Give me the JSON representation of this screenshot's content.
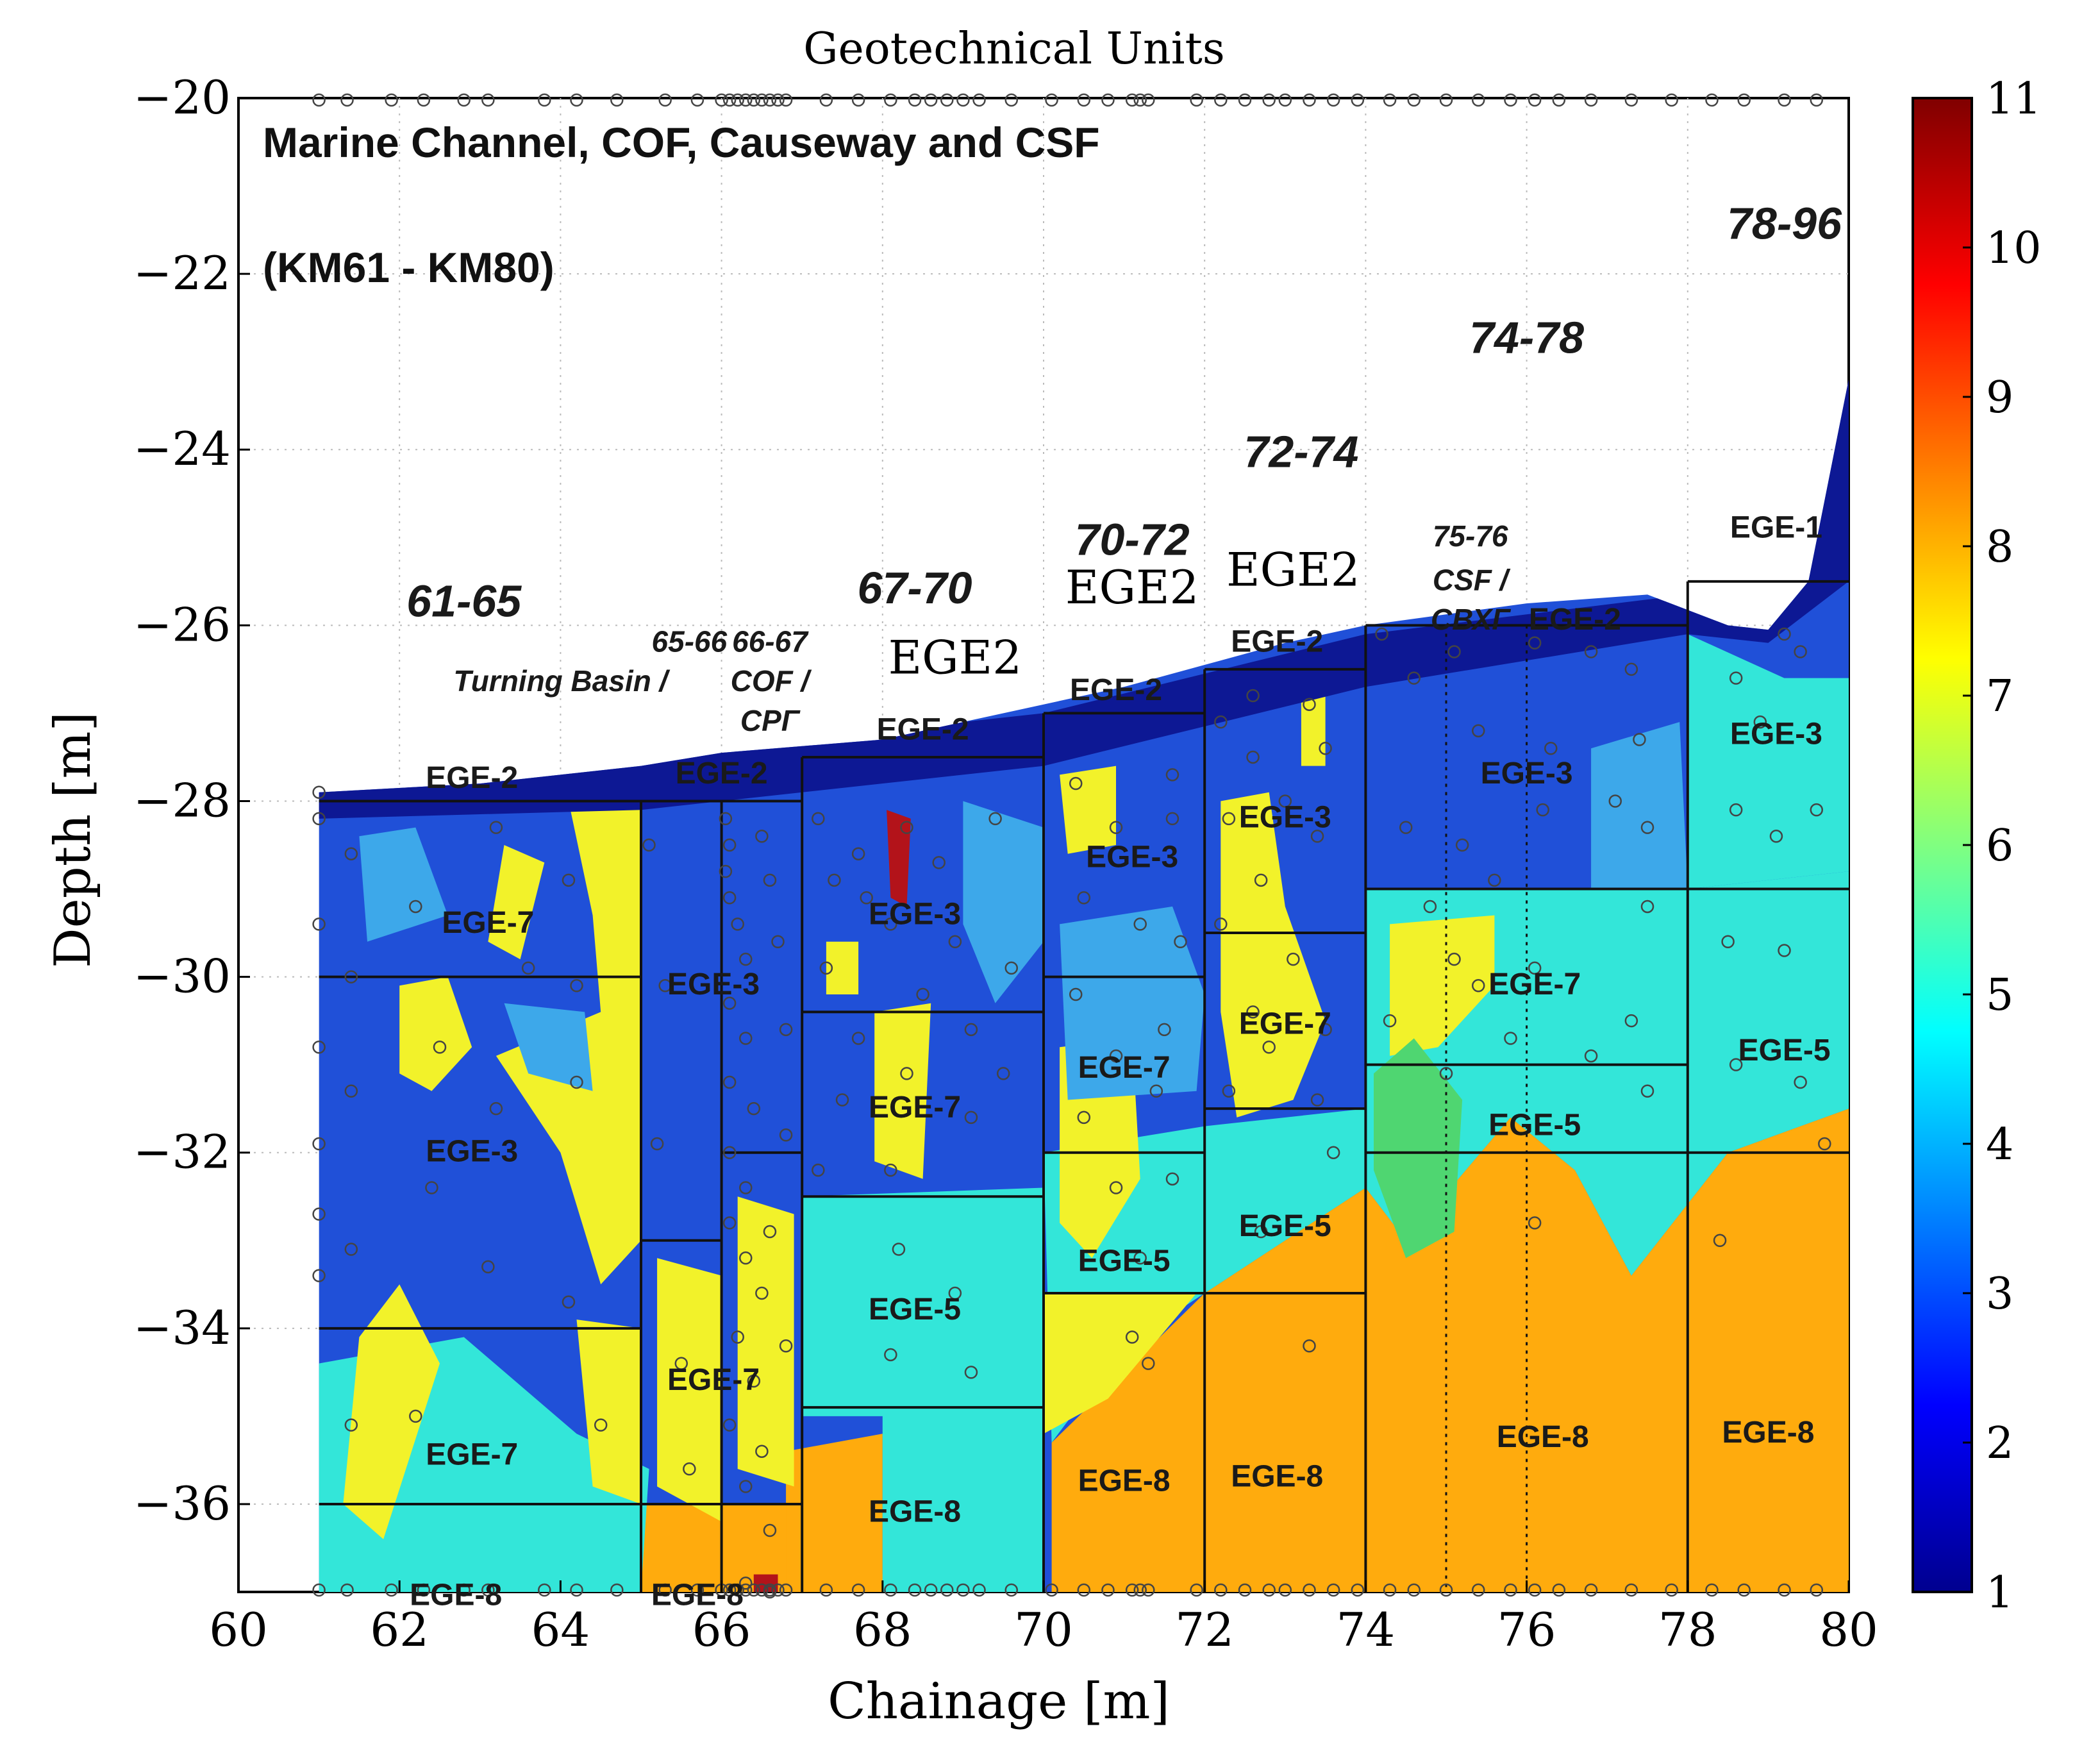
{
  "chart_data": {
    "type": "heatmap",
    "title": "Geotechnical Units",
    "subtitle": "Marine Channel, COF, Causeway and CSF",
    "subtitle2": "(KM61 - KM80)",
    "xlabel": "Chainage [m]",
    "ylabel": "Depth [m]",
    "xlim": [
      60,
      80
    ],
    "ylim": [
      -37,
      -20
    ],
    "x_ticks": [
      60,
      62,
      64,
      66,
      68,
      70,
      72,
      74,
      76,
      78,
      80
    ],
    "x_tick_labels": [
      "60",
      "62",
      "64",
      "66",
      "68",
      "70",
      "72",
      "74",
      "76",
      "78",
      "80"
    ],
    "y_ticks": [
      -20,
      -22,
      -24,
      -26,
      -28,
      -30,
      -32,
      -34,
      -36
    ],
    "y_tick_labels": [
      "−20",
      "−22",
      "−24",
      "−26",
      "−28",
      "−30",
      "−32",
      "−34",
      "−36"
    ],
    "grid": true,
    "colorbar": {
      "min": 1,
      "max": 11,
      "ticks": [
        1,
        2,
        3,
        4,
        5,
        6,
        7,
        8,
        9,
        10,
        11
      ],
      "tick_labels": [
        "1",
        "2",
        "3",
        "4",
        "5",
        "6",
        "7",
        "8",
        "9",
        "10",
        "11"
      ],
      "colormap": [
        "#00008f",
        "#0000ff",
        "#0080ff",
        "#00ffff",
        "#80ff80",
        "#ffff00",
        "#ff8000",
        "#ff0000",
        "#800000"
      ]
    },
    "colors": {
      "eg2": "#1a32c9",
      "eg3": "#2050d8",
      "eg5": "#33e6d9",
      "eg7": "#f2f22a",
      "eg8": "#ffab0d",
      "deep": "#0d1894",
      "light_blue": "#3da8ea",
      "red": "#b3131a",
      "green": "#4fd671"
    },
    "seabed_profile": [
      [
        61,
        -27.9
      ],
      [
        63,
        -27.8
      ],
      [
        65,
        -27.6
      ],
      [
        66,
        -27.45
      ],
      [
        68,
        -27.3
      ],
      [
        69,
        -27.1
      ],
      [
        70,
        -26.9
      ],
      [
        71,
        -26.7
      ],
      [
        72,
        -26.45
      ],
      [
        73,
        -26.2
      ],
      [
        74,
        -26.0
      ],
      [
        76,
        -25.75
      ],
      [
        77.5,
        -25.65
      ],
      [
        78.5,
        -26.0
      ],
      [
        79,
        -26.05
      ],
      [
        79.5,
        -25.5
      ],
      [
        80,
        -23.2
      ]
    ],
    "unit_columns": [
      {
        "x0": 61,
        "x1": 65,
        "boundaries": [
          -28,
          -30,
          -34,
          -36
        ]
      },
      {
        "x0": 65,
        "x1": 66,
        "boundaries": [
          -28,
          -33,
          -36
        ]
      },
      {
        "x0": 66,
        "x1": 67,
        "boundaries": [
          -28,
          -32,
          -36
        ]
      },
      {
        "x0": 67,
        "x1": 70,
        "boundaries": [
          -27.5,
          -30.4,
          -32.5,
          -34.9
        ]
      },
      {
        "x0": 70,
        "x1": 72,
        "boundaries": [
          -27,
          -30,
          -32,
          -33.6
        ]
      },
      {
        "x0": 72,
        "x1": 74,
        "boundaries": [
          -26.5,
          -29.5,
          -31.5,
          -33.6
        ]
      },
      {
        "x0": 74,
        "x1": 78,
        "boundaries": [
          -26,
          -29,
          -31,
          -32
        ]
      },
      {
        "x0": 78,
        "x1": 80,
        "boundaries": [
          -25.5,
          -29,
          -32
        ]
      }
    ],
    "zone_dividers": [
      61,
      65,
      66,
      67,
      70,
      72,
      74,
      78
    ],
    "dotted_dividers": [
      75,
      76
    ],
    "segment_labels": [
      {
        "text": "61-65",
        "x": 62.8,
        "y": -25.9
      },
      {
        "text": "65-66",
        "x": 65.6,
        "y": -26.3
      },
      {
        "text": "Turning Basin /",
        "x": 64.0,
        "y": -26.75
      },
      {
        "text": "66-67",
        "x": 66.6,
        "y": -26.3
      },
      {
        "text": "COF /",
        "x": 66.6,
        "y": -26.75
      },
      {
        "text": "СРГ",
        "x": 66.6,
        "y": -27.2
      },
      {
        "text": "67-70",
        "x": 68.4,
        "y": -25.75
      },
      {
        "text": "70-72",
        "x": 71.1,
        "y": -25.2
      },
      {
        "text": "72-74",
        "x": 73.2,
        "y": -24.2
      },
      {
        "text": "74-78",
        "x": 76.0,
        "y": -22.9
      },
      {
        "text": "75-76",
        "x": 75.3,
        "y": -25.1
      },
      {
        "text": "CSF /",
        "x": 75.3,
        "y": -25.6
      },
      {
        "text": "СВХГ",
        "x": 75.3,
        "y": -26.05
      },
      {
        "text": "78-96",
        "x": 79.2,
        "y": -21.6
      }
    ],
    "unit_labels": [
      {
        "text": "EGE-2",
        "x": 62.9,
        "y": -27.85
      },
      {
        "text": "EGE-7",
        "x": 63.1,
        "y": -29.5
      },
      {
        "text": "EGE-3",
        "x": 62.9,
        "y": -32.1
      },
      {
        "text": "EGE-7",
        "x": 62.9,
        "y": -35.55
      },
      {
        "text": "EGE-8",
        "x": 62.7,
        "y": -37.15
      },
      {
        "text": "EGE-2",
        "x": 66.0,
        "y": -27.8
      },
      {
        "text": "EGE-3",
        "x": 65.9,
        "y": -30.2
      },
      {
        "text": "EGE-7",
        "x": 65.9,
        "y": -34.7
      },
      {
        "text": "EGE-8",
        "x": 65.7,
        "y": -37.15
      },
      {
        "text": "EGE-2",
        "x": 68.5,
        "y": -27.3
      },
      {
        "text": "EGE-3",
        "x": 68.4,
        "y": -29.4
      },
      {
        "text": "EGE-7",
        "x": 68.4,
        "y": -31.6
      },
      {
        "text": "EGE-5",
        "x": 68.4,
        "y": -33.9
      },
      {
        "text": "EGE-8",
        "x": 68.4,
        "y": -36.2
      },
      {
        "text": "EGE-2",
        "x": 70.9,
        "y": -26.85
      },
      {
        "text": "EGE-3",
        "x": 71.1,
        "y": -28.75
      },
      {
        "text": "EGE-7",
        "x": 71.0,
        "y": -31.15
      },
      {
        "text": "EGE-5",
        "x": 71.0,
        "y": -33.35
      },
      {
        "text": "EGE-8",
        "x": 71.0,
        "y": -35.85
      },
      {
        "text": "EGE-2",
        "x": 72.9,
        "y": -26.3
      },
      {
        "text": "EGE-3",
        "x": 73.0,
        "y": -28.3
      },
      {
        "text": "EGE-7",
        "x": 73.0,
        "y": -30.65
      },
      {
        "text": "EGE-5",
        "x": 73.0,
        "y": -32.95
      },
      {
        "text": "EGE-8",
        "x": 72.9,
        "y": -35.8
      },
      {
        "text": "EGE-2",
        "x": 76.6,
        "y": -26.05
      },
      {
        "text": "EGE-3",
        "x": 76.0,
        "y": -27.8
      },
      {
        "text": "EGE-7",
        "x": 76.1,
        "y": -30.2
      },
      {
        "text": "EGE-5",
        "x": 76.1,
        "y": -31.8
      },
      {
        "text": "EGE-8",
        "x": 76.2,
        "y": -35.35
      },
      {
        "text": "EGE-1",
        "x": 79.1,
        "y": -25.0
      },
      {
        "text": "EGE-3",
        "x": 79.1,
        "y": -27.35
      },
      {
        "text": "EGE-5",
        "x": 79.2,
        "y": -30.95
      },
      {
        "text": "EGE-8",
        "x": 79.0,
        "y": -35.3
      }
    ],
    "big_labels": [
      {
        "text": "EGE2",
        "x": 68.9,
        "y": -26.55
      },
      {
        "text": "EGE2",
        "x": 71.1,
        "y": -25.75
      },
      {
        "text": "EGE2",
        "x": 73.1,
        "y": -25.55
      }
    ],
    "sample_points": [
      [
        61,
        -27.9
      ],
      [
        61,
        -28.2
      ],
      [
        61.4,
        -28.6
      ],
      [
        61,
        -29.4
      ],
      [
        61.4,
        -30
      ],
      [
        61,
        -30.8
      ],
      [
        61.4,
        -31.3
      ],
      [
        61,
        -31.9
      ],
      [
        61,
        -32.7
      ],
      [
        61.4,
        -33.1
      ],
      [
        61,
        -33.4
      ],
      [
        61.4,
        -35.1
      ],
      [
        62.2,
        -29.2
      ],
      [
        62.5,
        -30.8
      ],
      [
        62.4,
        -32.4
      ],
      [
        62.2,
        -35
      ],
      [
        63.2,
        -28.3
      ],
      [
        63.6,
        -29.9
      ],
      [
        63.2,
        -31.5
      ],
      [
        63.1,
        -33.3
      ],
      [
        64.1,
        -28.9
      ],
      [
        64.2,
        -30.1
      ],
      [
        64.2,
        -31.2
      ],
      [
        64.1,
        -33.7
      ],
      [
        64.5,
        -35.1
      ],
      [
        65.1,
        -28.5
      ],
      [
        65.3,
        -30.1
      ],
      [
        65.2,
        -31.9
      ],
      [
        65.5,
        -34.4
      ],
      [
        65.6,
        -35.6
      ],
      [
        66.05,
        -28.2
      ],
      [
        66.1,
        -28.5
      ],
      [
        66.05,
        -28.8
      ],
      [
        66.1,
        -29.1
      ],
      [
        66.2,
        -29.4
      ],
      [
        66.3,
        -29.8
      ],
      [
        66.1,
        -30.3
      ],
      [
        66.3,
        -30.7
      ],
      [
        66.1,
        -31.2
      ],
      [
        66.4,
        -31.5
      ],
      [
        66.1,
        -32
      ],
      [
        66.3,
        -32.4
      ],
      [
        66.1,
        -32.8
      ],
      [
        66.3,
        -33.2
      ],
      [
        66.5,
        -33.6
      ],
      [
        66.2,
        -34.1
      ],
      [
        66.4,
        -34.6
      ],
      [
        66.1,
        -35.1
      ],
      [
        66.5,
        -35.4
      ],
      [
        66.3,
        -35.8
      ],
      [
        66.6,
        -36.3
      ],
      [
        66.3,
        -36.9
      ],
      [
        66.6,
        -37
      ],
      [
        66.5,
        -28.4
      ],
      [
        66.6,
        -28.9
      ],
      [
        66.7,
        -29.6
      ],
      [
        66.8,
        -30.6
      ],
      [
        66.8,
        -31.8
      ],
      [
        66.6,
        -32.9
      ],
      [
        66.8,
        -34.2
      ],
      [
        67.2,
        -28.2
      ],
      [
        67.4,
        -28.9
      ],
      [
        67.8,
        -29.1
      ],
      [
        67.3,
        -29.9
      ],
      [
        67.7,
        -30.7
      ],
      [
        67.5,
        -31.4
      ],
      [
        67.2,
        -32.2
      ],
      [
        67.7,
        -28.6
      ],
      [
        68.3,
        -28.3
      ],
      [
        68.7,
        -28.7
      ],
      [
        68.1,
        -29.4
      ],
      [
        68.9,
        -29.6
      ],
      [
        68.5,
        -30.2
      ],
      [
        69.1,
        -30.6
      ],
      [
        68.3,
        -31.1
      ],
      [
        69.1,
        -31.6
      ],
      [
        68.1,
        -32.2
      ],
      [
        69.4,
        -28.2
      ],
      [
        69.6,
        -29.9
      ],
      [
        69.5,
        -31.1
      ],
      [
        68.2,
        -33.1
      ],
      [
        68.9,
        -33.6
      ],
      [
        68.1,
        -34.3
      ],
      [
        69.1,
        -34.5
      ],
      [
        70.4,
        -27.8
      ],
      [
        70.9,
        -28.3
      ],
      [
        70.5,
        -29.1
      ],
      [
        71.2,
        -29.4
      ],
      [
        70.4,
        -30.2
      ],
      [
        70.9,
        -30.9
      ],
      [
        71.4,
        -31.3
      ],
      [
        70.5,
        -31.6
      ],
      [
        70.9,
        -32.4
      ],
      [
        71.6,
        -32.3
      ],
      [
        71.2,
        -33.2
      ],
      [
        71.1,
        -34.1
      ],
      [
        71.3,
        -34.4
      ],
      [
        71.6,
        -28.2
      ],
      [
        71.7,
        -29.6
      ],
      [
        71.5,
        -30.6
      ],
      [
        71.6,
        -27.7
      ],
      [
        72.2,
        -27.1
      ],
      [
        72.6,
        -27.5
      ],
      [
        72.3,
        -28.2
      ],
      [
        73,
        -28
      ],
      [
        72.7,
        -28.9
      ],
      [
        73.4,
        -28.4
      ],
      [
        72.2,
        -29.4
      ],
      [
        73.1,
        -29.8
      ],
      [
        72.6,
        -30.4
      ],
      [
        73.5,
        -30.6
      ],
      [
        72.3,
        -31.3
      ],
      [
        72.8,
        -30.8
      ],
      [
        73.4,
        -31.4
      ],
      [
        73.6,
        -32
      ],
      [
        72.7,
        -32.9
      ],
      [
        73.3,
        -34.2
      ],
      [
        72.6,
        -26.8
      ],
      [
        73.3,
        -26.9
      ],
      [
        73.5,
        -27.4
      ],
      [
        74.2,
        -26.1
      ],
      [
        74.6,
        -26.6
      ],
      [
        75.1,
        -26.3
      ],
      [
        75.4,
        -27.2
      ],
      [
        74.5,
        -28.3
      ],
      [
        75.2,
        -28.5
      ],
      [
        74.8,
        -29.2
      ],
      [
        75.1,
        -29.8
      ],
      [
        74.3,
        -30.5
      ],
      [
        75,
        -31.1
      ],
      [
        75.4,
        -30.1
      ],
      [
        75.6,
        -28.9
      ],
      [
        76.1,
        -26.2
      ],
      [
        76.3,
        -27.4
      ],
      [
        76.2,
        -28.1
      ],
      [
        76.1,
        -29.9
      ],
      [
        75.8,
        -30.7
      ],
      [
        76.8,
        -26.3
      ],
      [
        77.3,
        -26.5
      ],
      [
        77.1,
        -28
      ],
      [
        77.5,
        -29.2
      ],
      [
        77.3,
        -30.5
      ],
      [
        76.1,
        -32.8
      ],
      [
        77.4,
        -27.3
      ],
      [
        77.5,
        -28.3
      ],
      [
        77.5,
        -31.3
      ],
      [
        76.8,
        -30.9
      ],
      [
        78.6,
        -26.6
      ],
      [
        78.9,
        -27.1
      ],
      [
        79.2,
        -26.1
      ],
      [
        79.4,
        -26.3
      ],
      [
        78.6,
        -28.1
      ],
      [
        79.1,
        -28.4
      ],
      [
        79.6,
        -28.1
      ],
      [
        78.5,
        -29.6
      ],
      [
        79.2,
        -29.7
      ],
      [
        78.6,
        -31
      ],
      [
        79.4,
        -31.2
      ],
      [
        79.7,
        -31.9
      ],
      [
        78.4,
        -33
      ]
    ],
    "axis_points_x": [
      61,
      61.35,
      61.9,
      62.3,
      62.8,
      63.1,
      63.8,
      64.2,
      64.7,
      65.3,
      65.7,
      66.0,
      66.1,
      66.2,
      66.3,
      66.4,
      66.5,
      66.6,
      66.7,
      66.8,
      67.3,
      67.7,
      68.1,
      68.4,
      68.6,
      68.8,
      69.0,
      69.2,
      69.6,
      70.1,
      70.5,
      70.8,
      71.1,
      71.2,
      71.3,
      71.9,
      72.2,
      72.5,
      72.8,
      73.0,
      73.3,
      73.6,
      73.9,
      74.3,
      74.6,
      75.0,
      75.4,
      75.8,
      76.1,
      76.4,
      76.8,
      77.3,
      77.8,
      78.3,
      78.7,
      79.2,
      79.6
    ],
    "legend": "colorbar right"
  }
}
